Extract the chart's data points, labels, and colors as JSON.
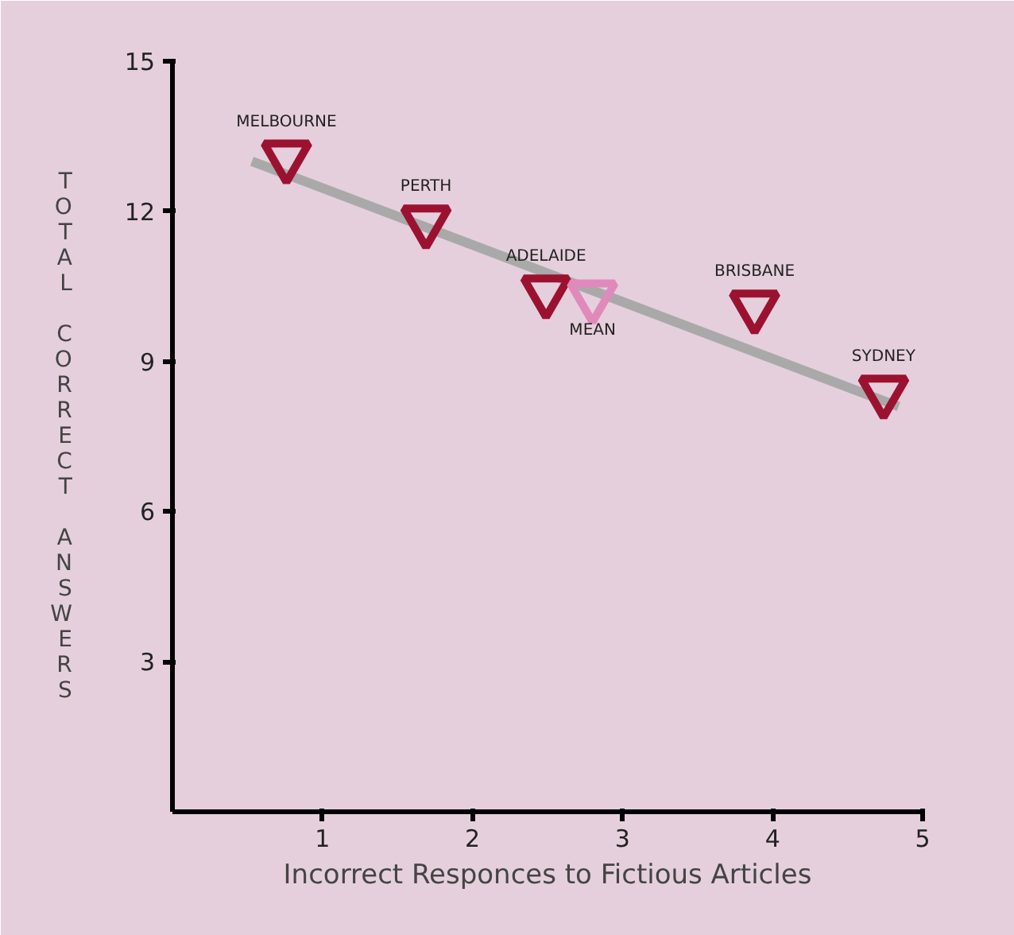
{
  "chart_data": {
    "type": "scatter",
    "xlabel": "Incorrect Responces to Fictious Articles",
    "ylabel": "TOTAL CORRECT ANSWERS",
    "xlim": [
      0,
      5
    ],
    "ylim": [
      0,
      15
    ],
    "xticks": [
      1,
      2,
      3,
      4,
      5
    ],
    "yticks": [
      3,
      6,
      9,
      12,
      15
    ],
    "grid": false,
    "marker": "triangle",
    "series": [
      {
        "type": "line",
        "marker": "none",
        "color": "#a9a9a9",
        "x": [
          0.53,
          4.84
        ],
        "values": [
          13.0,
          8.1
        ]
      },
      {
        "color": "#9b1230",
        "x": [
          0.76,
          1.69,
          2.49,
          3.88,
          4.74
        ],
        "values": [
          13.1,
          11.8,
          10.4,
          10.1,
          8.4
        ]
      },
      {
        "color": "#e08abb",
        "x": [
          2.8
        ],
        "values": [
          10.3
        ]
      }
    ],
    "annotations": [
      {
        "text": "MELBOURNE",
        "x": 0.76,
        "y": 13.1
      },
      {
        "text": "PERTH",
        "x": 1.69,
        "y": 11.8
      },
      {
        "text": "ADELAIDE",
        "x": 2.49,
        "y": 10.4
      },
      {
        "text": "MEAN",
        "x": 2.8,
        "y": 10.3
      },
      {
        "text": "BRISBANE",
        "x": 3.88,
        "y": 10.1
      },
      {
        "text": "SYDNEY",
        "x": 4.74,
        "y": 8.4
      }
    ]
  }
}
